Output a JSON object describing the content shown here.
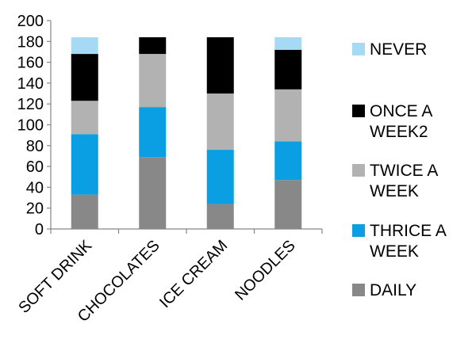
{
  "chart_data": {
    "type": "bar",
    "stacked": true,
    "categories": [
      "SOFT DRINK",
      "CHOCOLATES",
      "ICE CREAM",
      "NOODLES"
    ],
    "series": [
      {
        "name": "DAILY",
        "values": [
          33,
          69,
          24,
          47
        ],
        "color": "#888888"
      },
      {
        "name": "THRICE A WEEK",
        "values": [
          58,
          48,
          52,
          37
        ],
        "color": "#0A9FE3"
      },
      {
        "name": "TWICE A WEEK",
        "values": [
          32,
          51,
          54,
          50
        ],
        "color": "#B2B2B2"
      },
      {
        "name": "ONCE A WEEK2",
        "values": [
          45,
          16,
          54,
          38
        ],
        "color": "#000000"
      },
      {
        "name": "NEVER",
        "values": [
          16,
          0,
          0,
          12
        ],
        "color": "#A6DAF4"
      }
    ],
    "ylim": [
      0,
      200
    ],
    "yticks": [
      "0",
      "20",
      "40",
      "60",
      "80",
      "100",
      "120",
      "140",
      "160",
      "180",
      "200"
    ],
    "grid": false,
    "legend_position": "right",
    "title": "",
    "xlabel": "",
    "ylabel": ""
  },
  "legend": {
    "items": [
      {
        "lines": [
          "NEVER"
        ],
        "color": "#A6DAF4"
      },
      {
        "lines": [
          "ONCE A",
          "WEEK2"
        ],
        "color": "#000000"
      },
      {
        "lines": [
          "TWICE A",
          "WEEK"
        ],
        "color": "#B2B2B2"
      },
      {
        "lines": [
          "THRICE A",
          "WEEK"
        ],
        "color": "#0A9FE3"
      },
      {
        "lines": [
          "DAILY"
        ],
        "color": "#888888"
      }
    ]
  }
}
